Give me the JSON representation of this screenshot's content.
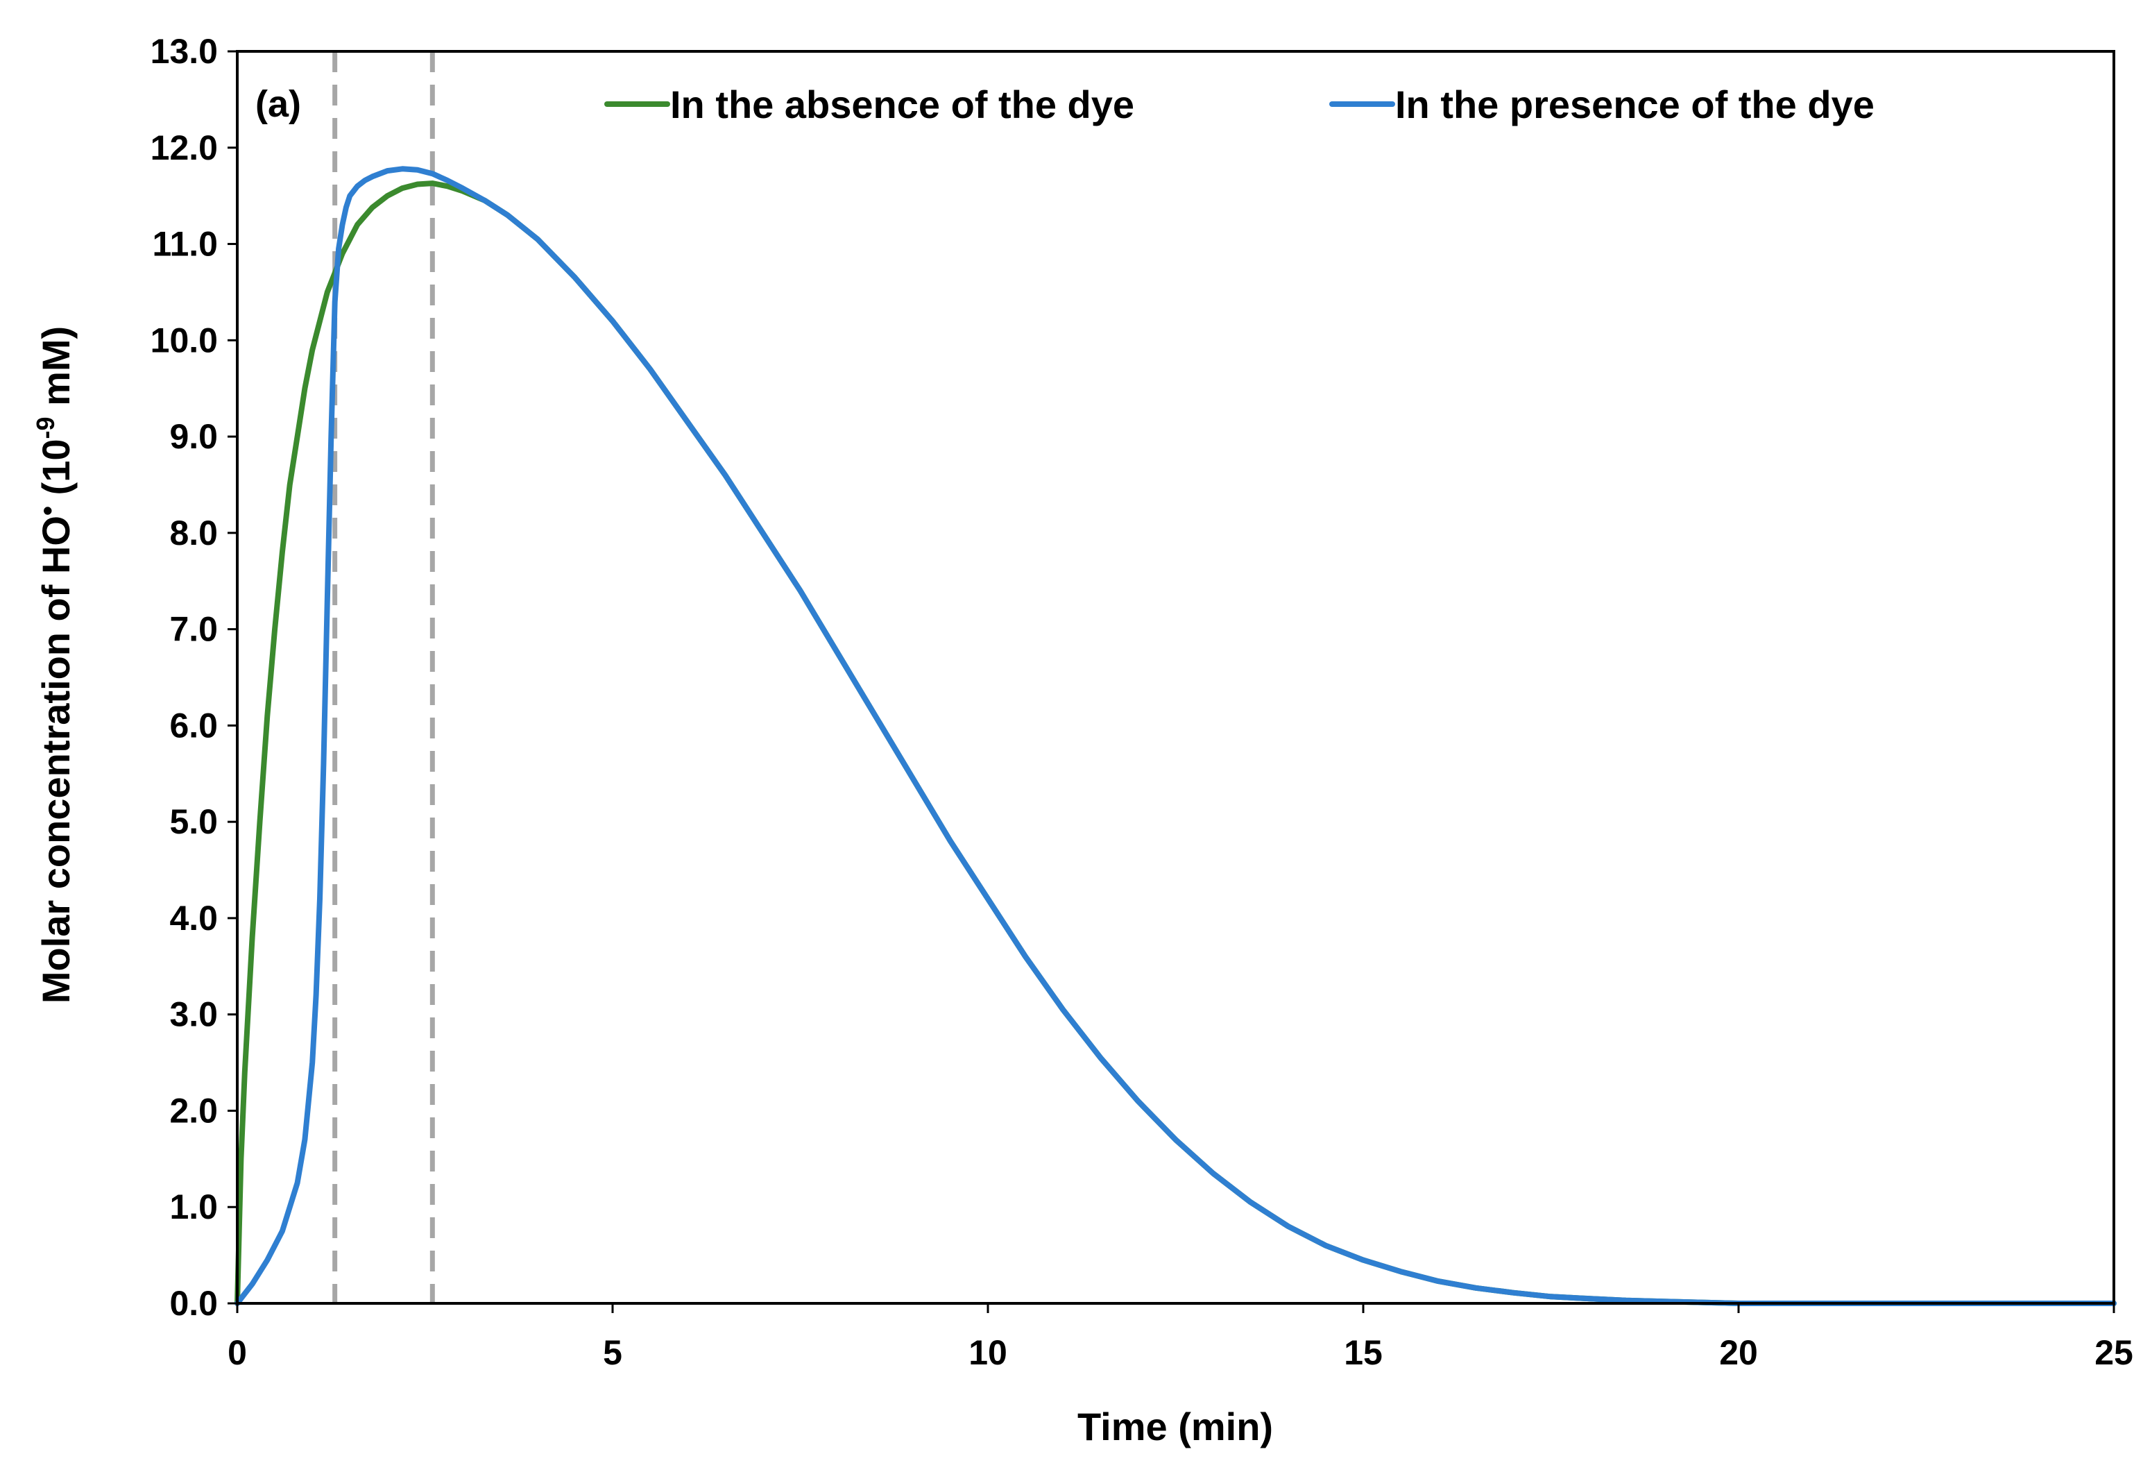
{
  "chart_data": {
    "type": "line",
    "panel_label": "(a)",
    "xlabel": "Time (min)",
    "ylabel": {
      "prefix": "Molar concentration of HO",
      "radical": "•",
      "unit_open": " (10",
      "exponent": "-9",
      "unit_close": " mM)"
    },
    "xlim": [
      0,
      25
    ],
    "ylim": [
      0,
      13
    ],
    "x_ticks": [
      0,
      5,
      10,
      15,
      20,
      25
    ],
    "x_tick_labels": [
      "0",
      "5",
      "10",
      "15",
      "20",
      "25"
    ],
    "y_ticks": [
      0,
      1,
      2,
      3,
      4,
      5,
      6,
      7,
      8,
      9,
      10,
      11,
      12,
      13
    ],
    "y_tick_labels": [
      "0.0",
      "1.0",
      "2.0",
      "3.0",
      "4.0",
      "5.0",
      "6.0",
      "7.0",
      "8.0",
      "9.0",
      "10.0",
      "11.0",
      "12.0",
      "13.0"
    ],
    "grid": false,
    "legend_position": "top",
    "reference_lines": [
      {
        "x": 1.3,
        "style": "dashed",
        "color": "#a6a6a6"
      },
      {
        "x": 2.6,
        "style": "dashed",
        "color": "#a6a6a6"
      }
    ],
    "series": [
      {
        "name": "In the absence of the dye",
        "color": "#3b8a2e",
        "x": [
          0,
          0.05,
          0.1,
          0.2,
          0.3,
          0.4,
          0.5,
          0.6,
          0.7,
          0.8,
          0.9,
          1.0,
          1.1,
          1.2,
          1.3,
          1.4,
          1.5,
          1.6,
          1.8,
          2.0,
          2.2,
          2.4,
          2.6,
          2.8,
          3.0,
          3.3,
          3.6,
          4.0,
          4.5,
          5,
          5.5,
          6,
          6.5,
          7,
          7.5,
          8,
          8.5,
          9,
          9.5,
          10,
          10.5,
          11,
          11.5,
          12,
          12.5,
          13,
          13.5,
          14,
          14.5,
          15,
          15.5,
          16,
          16.5,
          17,
          17.5,
          18,
          18.5,
          19,
          19.5,
          20,
          21,
          22,
          23,
          24,
          25
        ],
        "y": [
          0,
          1.5,
          2.4,
          3.8,
          5.0,
          6.1,
          7.0,
          7.8,
          8.5,
          9.0,
          9.5,
          9.9,
          10.2,
          10.5,
          10.7,
          10.9,
          11.05,
          11.2,
          11.38,
          11.5,
          11.58,
          11.62,
          11.63,
          11.6,
          11.55,
          11.45,
          11.3,
          11.05,
          10.65,
          10.2,
          9.7,
          9.15,
          8.6,
          8.0,
          7.4,
          6.75,
          6.1,
          5.45,
          4.8,
          4.2,
          3.6,
          3.05,
          2.55,
          2.1,
          1.7,
          1.35,
          1.05,
          0.8,
          0.6,
          0.45,
          0.33,
          0.23,
          0.16,
          0.11,
          0.07,
          0.05,
          0.03,
          0.02,
          0.01,
          0.0,
          0.0,
          0.0,
          0.0,
          0.0,
          0.0
        ]
      },
      {
        "name": "In the presence of the dye",
        "color": "#2f7fd1",
        "x": [
          0,
          0.2,
          0.4,
          0.6,
          0.8,
          0.9,
          1.0,
          1.05,
          1.1,
          1.15,
          1.2,
          1.25,
          1.3,
          1.35,
          1.4,
          1.45,
          1.5,
          1.6,
          1.7,
          1.8,
          2.0,
          2.2,
          2.4,
          2.6,
          2.8,
          3.0,
          3.3,
          3.6,
          4.0,
          4.5,
          5,
          5.5,
          6,
          6.5,
          7,
          7.5,
          8,
          8.5,
          9,
          9.5,
          10,
          10.5,
          11,
          11.5,
          12,
          12.5,
          13,
          13.5,
          14,
          14.5,
          15,
          15.5,
          16,
          16.5,
          17,
          17.5,
          18,
          18.5,
          19,
          19.5,
          20,
          21,
          22,
          23,
          24,
          25
        ],
        "y": [
          0,
          0.2,
          0.45,
          0.75,
          1.25,
          1.7,
          2.5,
          3.2,
          4.2,
          5.6,
          7.3,
          9.0,
          10.4,
          10.95,
          11.2,
          11.38,
          11.5,
          11.6,
          11.66,
          11.7,
          11.76,
          11.78,
          11.77,
          11.73,
          11.66,
          11.58,
          11.45,
          11.3,
          11.05,
          10.65,
          10.2,
          9.7,
          9.15,
          8.6,
          8.0,
          7.4,
          6.75,
          6.1,
          5.45,
          4.8,
          4.2,
          3.6,
          3.05,
          2.55,
          2.1,
          1.7,
          1.35,
          1.05,
          0.8,
          0.6,
          0.45,
          0.33,
          0.23,
          0.16,
          0.11,
          0.07,
          0.05,
          0.03,
          0.02,
          0.01,
          0.0,
          0.0,
          0.0,
          0.0,
          0.0,
          0.0
        ]
      }
    ]
  }
}
